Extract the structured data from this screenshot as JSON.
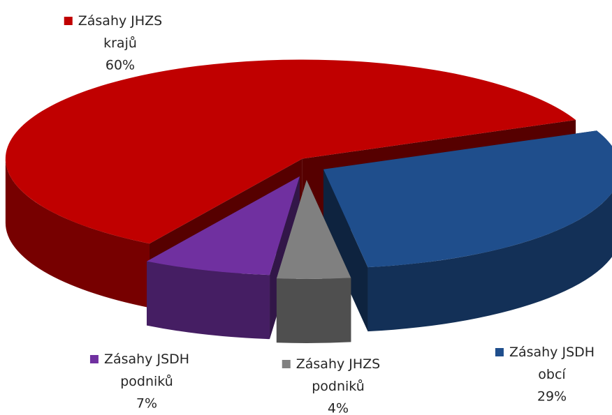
{
  "chart_data": {
    "type": "pie3d",
    "categories": [
      "Zásahy JHZS krajů",
      "Zásahy JSDH obcí",
      "Zásahy JHZS podniků",
      "Zásahy JSDH podniků"
    ],
    "values": [
      60,
      29,
      4,
      7
    ],
    "value_labels": [
      "60%",
      "29%",
      "4%",
      "7%"
    ],
    "colors": [
      "#c00000",
      "#1f4e8c",
      "#808080",
      "#7030a0"
    ]
  }
}
